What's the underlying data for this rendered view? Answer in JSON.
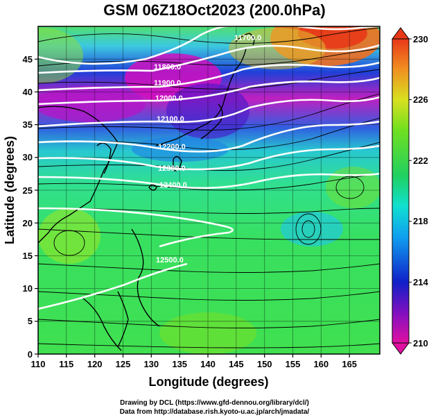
{
  "title": "GSM 06Z18Oct2023 (200.0hPa)",
  "axes": {
    "xlabel": "Longitude (degrees)",
    "ylabel": "Latitude  (degrees)",
    "x_ticks": [
      "110",
      "115",
      "120",
      "125",
      "130",
      "135",
      "140",
      "145",
      "150",
      "155",
      "160",
      "165"
    ],
    "y_ticks": [
      "0",
      "5",
      "10",
      "15",
      "20",
      "25",
      "30",
      "35",
      "40",
      "45"
    ],
    "xlim": [
      110,
      170
    ],
    "ylim": [
      0,
      50
    ]
  },
  "colorbar": {
    "labels": [
      "230",
      "226",
      "222",
      "218",
      "214",
      "210"
    ],
    "range": [
      210,
      230
    ],
    "colors": [
      "#e0109a",
      "#5a10c8",
      "#1030c8",
      "#10a0e8",
      "#10e8c0",
      "#20d060",
      "#60e020",
      "#a0e820",
      "#e8e020",
      "#f0a020",
      "#e84818"
    ]
  },
  "contours": [
    {
      "label": "11700.0"
    },
    {
      "label": "11800.0"
    },
    {
      "label": "11900.0"
    },
    {
      "label": "12000.0"
    },
    {
      "label": "12100.0"
    },
    {
      "label": "12200.0"
    },
    {
      "label": "12300.0"
    },
    {
      "label": "12400.0"
    },
    {
      "label": "12500.0"
    }
  ],
  "credits": {
    "line1": "Drawing by DCL (https://www.gfd-dennou.org/library/dcl/)",
    "line2": "Data from http://database.rish.kyoto-u.ac.jp/arch/jmadata/"
  }
}
